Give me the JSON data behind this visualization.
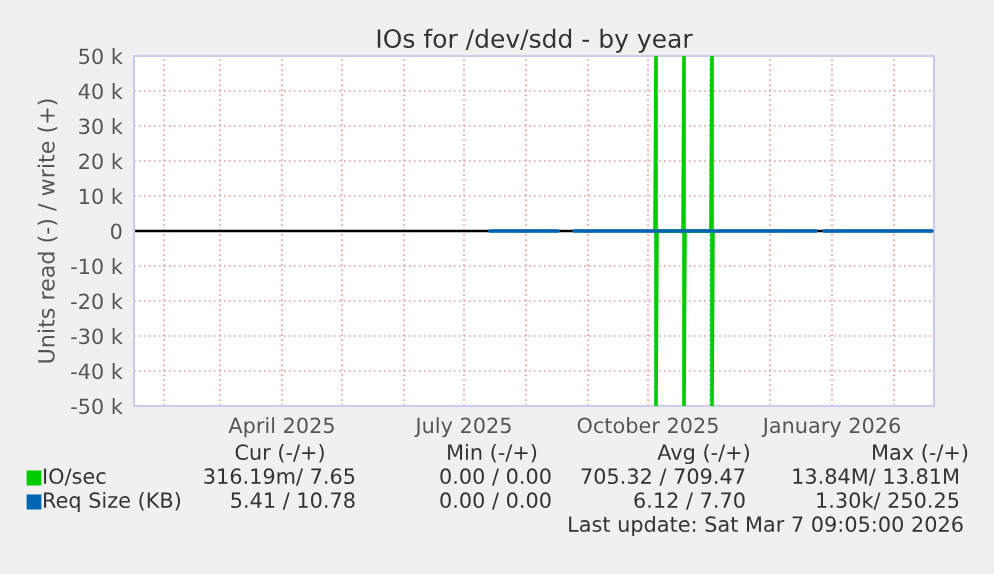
{
  "chart_data": {
    "type": "line",
    "title": "IOs for /dev/sdd - by year",
    "ylabel": "Units read (-) / write (+)",
    "series": [
      {
        "name": "IO/sec",
        "color": "#00cc00",
        "x": [
          "2025-10-04T12:00",
          "2025-10-05T00:00",
          "2025-10-05T00:00",
          "2025-10-05T12:00",
          "2025-10-18T12:00",
          "2025-10-19T00:00",
          "2025-10-19T00:00",
          "2025-10-19T12:00",
          "2025-11-01T12:00",
          "2025-11-02T00:00",
          "2025-11-02T00:00",
          "2025-11-02T12:00"
        ],
        "values": [
          0,
          50000,
          -50000,
          0,
          0,
          50000,
          -50000,
          0,
          0,
          50000,
          -50000,
          0
        ]
      },
      {
        "name": "Req Size (KB)",
        "color": "#0066b3",
        "x": [
          "2025-07-14",
          "2025-08-17",
          "2025-08-21",
          "2025-08-25",
          "2025-12-24",
          "2025-12-26",
          "2025-12-28",
          "2026-02-20"
        ],
        "values": [
          0,
          0,
          null,
          0,
          0,
          null,
          0,
          0
        ]
      }
    ],
    "xlim": [
      "2025-01-17",
      "2026-02-21"
    ],
    "xticks": [
      {
        "value": "2025-02-01",
        "label": null
      },
      {
        "value": "2025-03-01",
        "label": null
      },
      {
        "value": "2025-04-01",
        "label": "April 2025"
      },
      {
        "value": "2025-05-01",
        "label": null
      },
      {
        "value": "2025-06-01",
        "label": null
      },
      {
        "value": "2025-07-01",
        "label": "July 2025"
      },
      {
        "value": "2025-08-01",
        "label": null
      },
      {
        "value": "2025-09-01",
        "label": null
      },
      {
        "value": "2025-10-01",
        "label": "October 2025"
      },
      {
        "value": "2025-11-01",
        "label": null
      },
      {
        "value": "2025-12-01",
        "label": null
      },
      {
        "value": "2026-01-01",
        "label": "January 2026"
      },
      {
        "value": "2026-02-01",
        "label": null
      }
    ],
    "ylim": [
      -50000,
      50000
    ],
    "yticks": [
      {
        "value": -50000,
        "label": "-50 k"
      },
      {
        "value": -40000,
        "label": "-40 k"
      },
      {
        "value": -30000,
        "label": "-30 k"
      },
      {
        "value": -20000,
        "label": "-20 k"
      },
      {
        "value": -10000,
        "label": "-10 k"
      },
      0,
      {
        "value": 10000,
        "label": "10 k"
      },
      {
        "value": 20000,
        "label": "20 k"
      },
      {
        "value": 30000,
        "label": "30 k"
      },
      {
        "value": 40000,
        "label": "40 k"
      },
      {
        "value": 50000,
        "label": "50 k"
      }
    ],
    "ref_lines": [
      {
        "axis": "y",
        "value": 0,
        "color": "#000000"
      }
    ],
    "grid": true,
    "legend": "bottom left",
    "annotations": [
      "Cur (-/+)",
      "Min (-/+)",
      "Avg (-/+)",
      "Max (-/+)",
      "316.19m/ 7.65",
      "0.00 / 0.00",
      "705.32 / 709.47",
      "13.84M/ 13.81M",
      "5.41 / 10.78",
      "0.00 / 0.00",
      "6.12 / 7.70",
      "1.30k/ 250.25",
      "Last update: Sat Mar 7 09:05:00 2026"
    ]
  }
}
